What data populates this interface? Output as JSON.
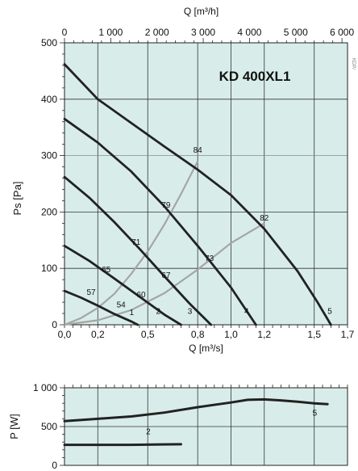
{
  "chart_data": [
    {
      "type": "line",
      "title": "KD 400XL1",
      "xlabel": "Q [m³/s]",
      "ylabel": "Ps [Pa]",
      "top_axis_label": "Q [m³/h]",
      "xlim": [
        0,
        1.7
      ],
      "ylim": [
        0,
        500
      ],
      "grid": true,
      "background_color": "#d8ede9",
      "x_ticks": [
        {
          "v": 0.0,
          "label": "0,0"
        },
        {
          "v": 0.2,
          "label": "0,2"
        },
        {
          "v": 0.5,
          "label": "0,5"
        },
        {
          "v": 0.8,
          "label": "0,8"
        },
        {
          "v": 1.0,
          "label": "1,0"
        },
        {
          "v": 1.2,
          "label": "1,2"
        },
        {
          "v": 1.5,
          "label": "1,5"
        },
        {
          "v": 1.7,
          "label": "1,7"
        }
      ],
      "top_ticks": [
        {
          "v": 0,
          "label": "0"
        },
        {
          "v": 1000,
          "label": "1 000"
        },
        {
          "v": 2000,
          "label": "2 000"
        },
        {
          "v": 3000,
          "label": "3 000"
        },
        {
          "v": 4000,
          "label": "4 000"
        },
        {
          "v": 5000,
          "label": "5 000"
        },
        {
          "v": 6000,
          "label": "6 000"
        }
      ],
      "y_ticks": [
        {
          "v": 0,
          "label": "0"
        },
        {
          "v": 100,
          "label": "100"
        },
        {
          "v": 200,
          "label": "200"
        },
        {
          "v": 300,
          "label": "300"
        },
        {
          "v": 400,
          "label": "400"
        },
        {
          "v": 500,
          "label": "500"
        }
      ],
      "series": [
        {
          "name": "1",
          "color": "#222222",
          "points": [
            [
              0,
              60
            ],
            [
              0.1,
              48
            ],
            [
              0.2,
              34
            ],
            [
              0.3,
              19
            ],
            [
              0.4,
              6
            ],
            [
              0.44,
              0
            ]
          ],
          "label_at": [
            0.39,
            17
          ]
        },
        {
          "name": "2",
          "color": "#222222",
          "points": [
            [
              0,
              140
            ],
            [
              0.15,
              113
            ],
            [
              0.3,
              82
            ],
            [
              0.45,
              50
            ],
            [
              0.6,
              18
            ],
            [
              0.7,
              0
            ]
          ],
          "label_at": [
            0.55,
            19
          ]
        },
        {
          "name": "3",
          "color": "#222222",
          "points": [
            [
              0,
              262
            ],
            [
              0.15,
              225
            ],
            [
              0.3,
              182
            ],
            [
              0.45,
              135
            ],
            [
              0.6,
              86
            ],
            [
              0.75,
              38
            ],
            [
              0.88,
              0
            ]
          ],
          "label_at": [
            0.74,
            19
          ]
        },
        {
          "name": "4",
          "color": "#222222",
          "points": [
            [
              0,
              365
            ],
            [
              0.2,
              323
            ],
            [
              0.4,
              272
            ],
            [
              0.6,
              210
            ],
            [
              0.8,
              140
            ],
            [
              1.0,
              66
            ],
            [
              1.15,
              0
            ]
          ],
          "label_at": [
            1.08,
            19
          ]
        },
        {
          "name": "5",
          "color": "#222222",
          "points": [
            [
              0,
              462
            ],
            [
              0.2,
              400
            ],
            [
              0.4,
              358
            ],
            [
              0.6,
              316
            ],
            [
              0.8,
              275
            ],
            [
              1.0,
              230
            ],
            [
              1.2,
              170
            ],
            [
              1.4,
              95
            ],
            [
              1.52,
              40
            ],
            [
              1.6,
              0
            ]
          ],
          "label_at": [
            1.58,
            19
          ]
        }
      ],
      "system_lines": [
        {
          "color": "#a5a5a5",
          "points": [
            [
              0,
              0
            ],
            [
              0.1,
              12
            ],
            [
              0.2,
              30
            ],
            [
              0.3,
              55
            ],
            [
              0.4,
              90
            ],
            [
              0.5,
              130
            ],
            [
              0.6,
              178
            ],
            [
              0.7,
              232
            ],
            [
              0.8,
              290
            ]
          ]
        },
        {
          "color": "#a5a5a5",
          "points": [
            [
              0,
              0
            ],
            [
              0.2,
              8
            ],
            [
              0.4,
              26
            ],
            [
              0.6,
              56
            ],
            [
              0.8,
              98
            ],
            [
              1.0,
              145
            ],
            [
              1.2,
              180
            ]
          ]
        }
      ],
      "efficiency_labels": [
        {
          "text": "84",
          "x": 0.8,
          "y": 305
        },
        {
          "text": "82",
          "x": 1.2,
          "y": 185
        },
        {
          "text": "79",
          "x": 0.61,
          "y": 208
        },
        {
          "text": "73",
          "x": 0.87,
          "y": 113
        },
        {
          "text": "71",
          "x": 0.43,
          "y": 142
        },
        {
          "text": "67",
          "x": 0.61,
          "y": 83
        },
        {
          "text": "65",
          "x": 0.25,
          "y": 93
        },
        {
          "text": "60",
          "x": 0.46,
          "y": 49
        },
        {
          "text": "57",
          "x": 0.16,
          "y": 53
        },
        {
          "text": "54",
          "x": 0.34,
          "y": 31
        }
      ],
      "side_text": "KDP/"
    },
    {
      "type": "line",
      "ylabel": "P [W]",
      "xlim": [
        0,
        1.7
      ],
      "ylim": [
        0,
        1000
      ],
      "grid": true,
      "background_color": "#d8ede9",
      "y_ticks": [
        {
          "v": 0,
          "label": "0"
        },
        {
          "v": 500,
          "label": "500"
        },
        {
          "v": 1000,
          "label": "1 000"
        }
      ],
      "series": [
        {
          "name": "5",
          "color": "#222222",
          "points": [
            [
              0,
              570
            ],
            [
              0.2,
              600
            ],
            [
              0.4,
              630
            ],
            [
              0.6,
              680
            ],
            [
              0.8,
              750
            ],
            [
              1.0,
              810
            ],
            [
              1.1,
              845
            ],
            [
              1.2,
              850
            ],
            [
              1.3,
              838
            ],
            [
              1.4,
              820
            ],
            [
              1.5,
              800
            ],
            [
              1.58,
              790
            ]
          ],
          "label_at": [
            1.49,
            640
          ]
        },
        {
          "name": "2",
          "color": "#222222",
          "points": [
            [
              0,
              265
            ],
            [
              0.2,
              265
            ],
            [
              0.4,
              265
            ],
            [
              0.58,
              270
            ],
            [
              0.7,
              272
            ]
          ],
          "label_at": [
            0.49,
            400
          ]
        }
      ]
    }
  ]
}
